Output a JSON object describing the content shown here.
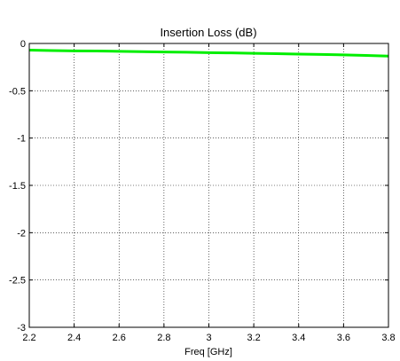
{
  "chart_data": {
    "type": "line",
    "title": "Insertion Loss (dB)",
    "xlabel": "Freq [GHz]",
    "ylabel": "",
    "xlim": [
      2.2,
      3.8
    ],
    "ylim": [
      -3,
      0
    ],
    "grid": true,
    "x_ticks": [
      "2.2",
      "2.4",
      "2.6",
      "2.8",
      "3",
      "3.2",
      "3.4",
      "3.6",
      "3.8"
    ],
    "y_ticks": [
      "0",
      "-0.5",
      "-1",
      "-1.5",
      "-2",
      "-2.5",
      "-3"
    ],
    "series": [
      {
        "color": "#00ee00",
        "x": [
          2.2,
          2.3,
          2.4,
          2.5,
          2.6,
          2.7,
          2.8,
          2.9,
          3.0,
          3.1,
          3.2,
          3.3,
          3.4,
          3.5,
          3.6,
          3.7,
          3.8
        ],
        "y": [
          -0.07,
          -0.075,
          -0.078,
          -0.08,
          -0.083,
          -0.087,
          -0.09,
          -0.093,
          -0.097,
          -0.1,
          -0.104,
          -0.108,
          -0.112,
          -0.116,
          -0.121,
          -0.127,
          -0.133
        ]
      }
    ]
  }
}
